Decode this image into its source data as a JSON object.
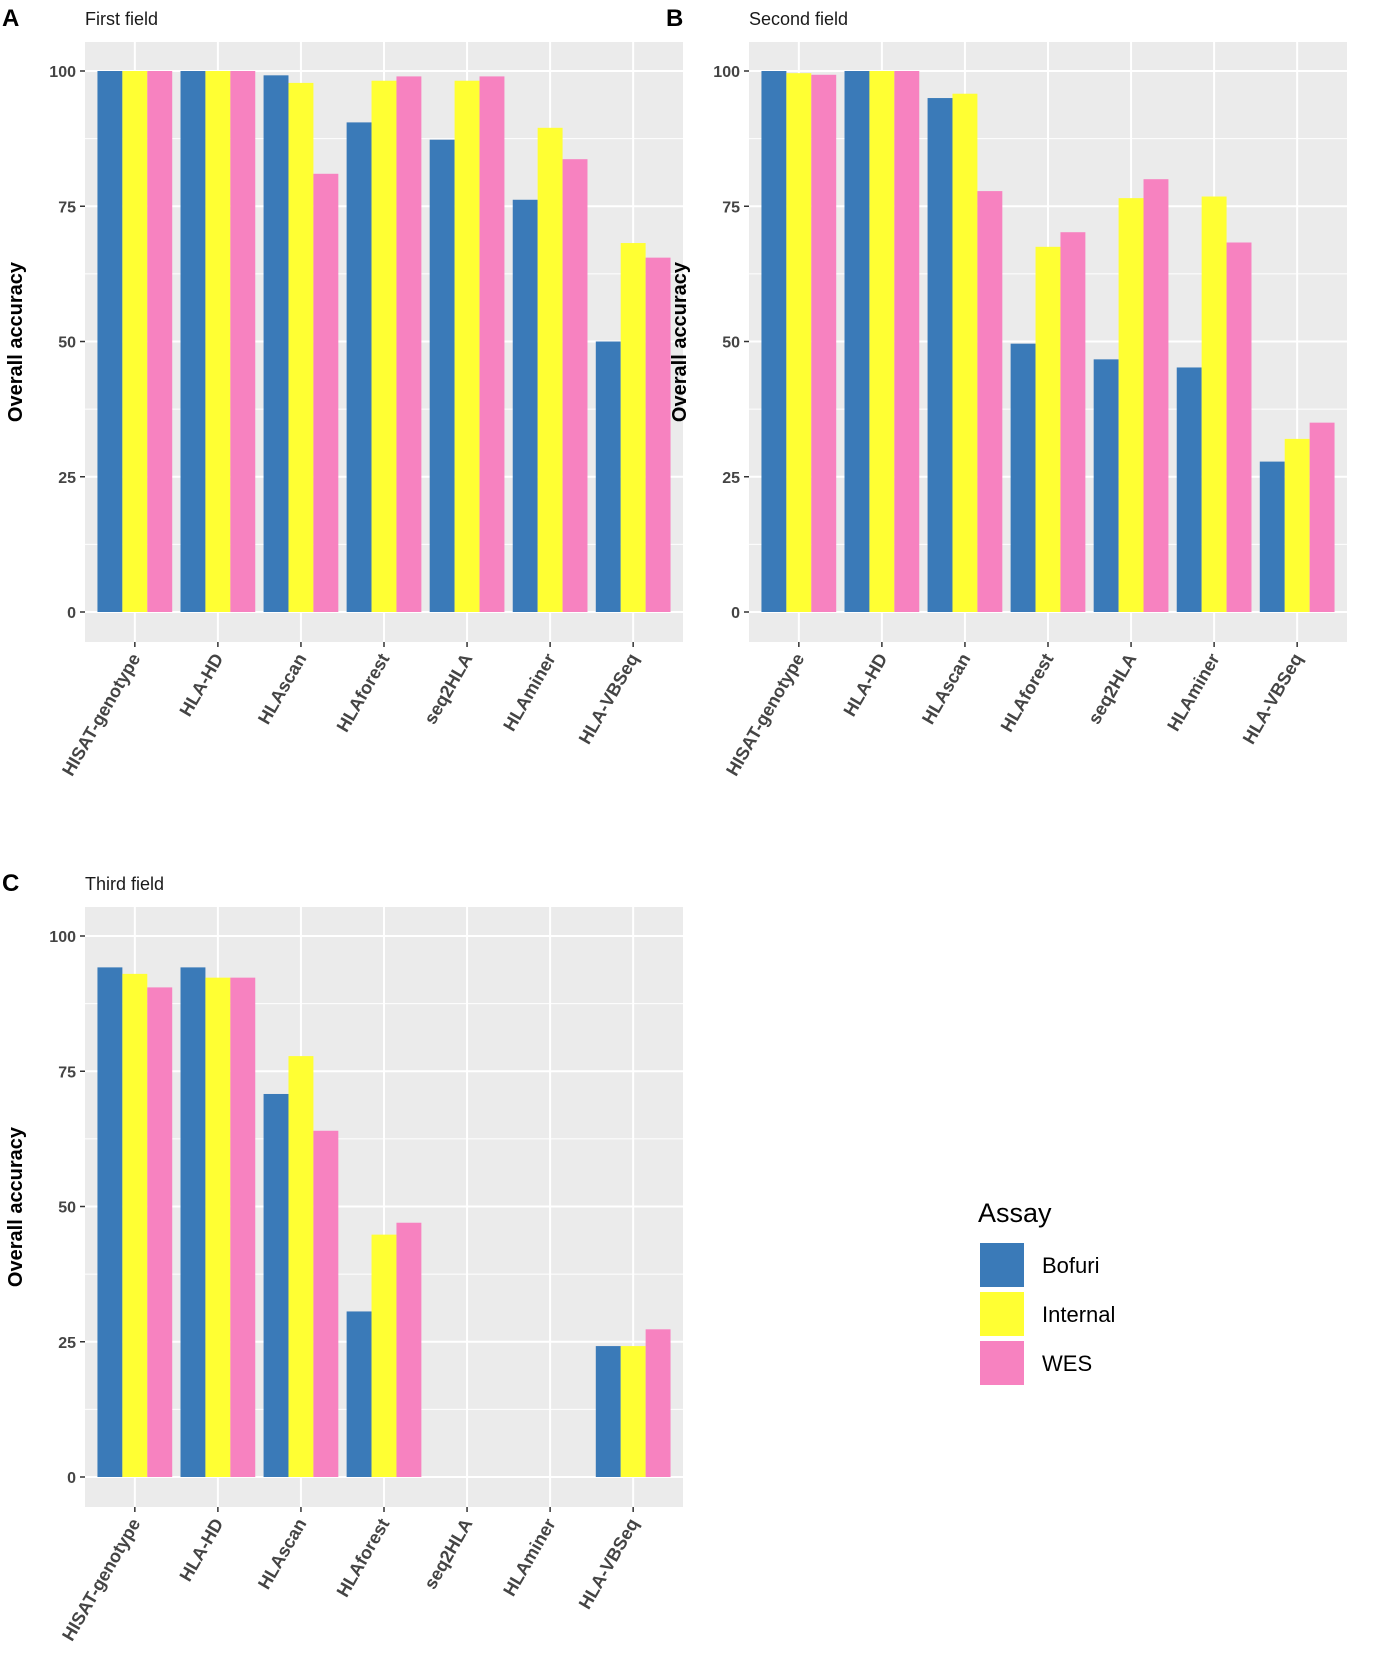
{
  "chart_data": [
    {
      "type": "bar",
      "panel_letter": "A",
      "title": "First field",
      "ylabel": "Overall accuracy",
      "xlabel": "",
      "ylim": [
        0,
        105
      ],
      "yticks": [
        0,
        25,
        50,
        75,
        100
      ],
      "ytick_labels": [
        "0",
        "25",
        "50",
        "75",
        "100"
      ],
      "grid": true,
      "categories": [
        "HISAT-genotype",
        "HLA-HD",
        "HLAscan",
        "HLAforest",
        "seq2HLA",
        "HLAminer",
        "HLA-VBSeq"
      ],
      "series": [
        {
          "name": "Bofuri",
          "values": [
            100,
            100,
            99.2,
            90.5,
            87.3,
            76.2,
            50.0
          ]
        },
        {
          "name": "Internal",
          "values": [
            100,
            100,
            97.8,
            98.2,
            98.2,
            89.5,
            68.2
          ]
        },
        {
          "name": "WES",
          "values": [
            100,
            100,
            81.0,
            99.0,
            99.0,
            83.7,
            65.5
          ]
        }
      ]
    },
    {
      "type": "bar",
      "panel_letter": "B",
      "title": "Second field",
      "ylabel": "Overall accuracy",
      "xlabel": "",
      "ylim": [
        0,
        105
      ],
      "yticks": [
        0,
        25,
        50,
        75,
        100
      ],
      "ytick_labels": [
        "0",
        "25",
        "50",
        "75",
        "100"
      ],
      "grid": true,
      "categories": [
        "HISAT-genotype",
        "HLA-HD",
        "HLAscan",
        "HLAforest",
        "seq2HLA",
        "HLAminer",
        "HLA-VBSeq"
      ],
      "series": [
        {
          "name": "Bofuri",
          "values": [
            100,
            100,
            95.0,
            49.6,
            46.7,
            45.2,
            27.8
          ]
        },
        {
          "name": "Internal",
          "values": [
            99.6,
            100,
            95.8,
            67.5,
            76.5,
            76.8,
            32.0
          ]
        },
        {
          "name": "WES",
          "values": [
            99.3,
            100,
            77.8,
            70.2,
            80.0,
            68.3,
            35.0
          ]
        }
      ]
    },
    {
      "type": "bar",
      "panel_letter": "C",
      "title": "Third field",
      "ylabel": "Overall accuracy",
      "xlabel": "",
      "ylim": [
        0,
        105
      ],
      "yticks": [
        0,
        25,
        50,
        75,
        100
      ],
      "ytick_labels": [
        "0",
        "25",
        "50",
        "75",
        "100"
      ],
      "grid": true,
      "categories": [
        "HISAT-genotype",
        "HLA-HD",
        "HLAscan",
        "HLAforest",
        "seq2HLA",
        "HLAminer",
        "HLA-VBSeq"
      ],
      "series": [
        {
          "name": "Bofuri",
          "values": [
            94.2,
            94.2,
            70.8,
            30.6,
            0,
            0,
            24.2
          ]
        },
        {
          "name": "Internal",
          "values": [
            93.0,
            92.3,
            77.8,
            44.8,
            0,
            0,
            24.2
          ]
        },
        {
          "name": "WES",
          "values": [
            90.5,
            92.3,
            64.0,
            47.0,
            0,
            0,
            27.3
          ]
        }
      ]
    }
  ],
  "legend": {
    "title": "Assay",
    "position": "right",
    "entries": [
      {
        "label": "Bofuri",
        "color": "#3a7ab8"
      },
      {
        "label": "Internal",
        "color": "#ffff33"
      },
      {
        "label": "WES",
        "color": "#f782c0"
      }
    ]
  },
  "colors": {
    "panel_background": "#ebebeb",
    "grid": "#ffffff"
  }
}
